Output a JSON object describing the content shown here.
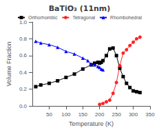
{
  "chart_data": {
    "type": "line",
    "title": "BaTiO₃ (11nm)",
    "xlabel": "Temperature (K)",
    "ylabel": "Volume Fraction",
    "xlim": [
      0,
      350
    ],
    "ylim": [
      0.0,
      1.0
    ],
    "xticks": [
      50,
      100,
      150,
      200,
      250,
      300,
      350
    ],
    "yticks": [
      {
        "value": 0,
        "label": "0.0"
      },
      0.2,
      0.4,
      0.6,
      0.8,
      {
        "value": 1,
        "label": "1.0"
      }
    ],
    "grid": false,
    "legend": "top",
    "series": [
      {
        "name": "Orthorhombic",
        "color": "#000000",
        "marker": "square",
        "x": [
          10,
          25,
          50,
          75,
          100,
          125,
          150,
          175,
          185,
          195,
          200,
          205,
          210,
          220,
          230,
          240,
          250,
          260,
          270,
          280,
          290,
          300,
          310,
          320
        ],
        "values": [
          0.23,
          0.25,
          0.27,
          0.3,
          0.34,
          0.38,
          0.44,
          0.49,
          0.51,
          0.52,
          0.51,
          0.52,
          0.54,
          0.6,
          0.68,
          0.69,
          0.6,
          0.45,
          0.35,
          0.27,
          0.22,
          0.18,
          0.17,
          0.16
        ]
      },
      {
        "name": "Tetragonal",
        "color": "#ff2222",
        "marker": "circle",
        "x": [
          200,
          210,
          220,
          230,
          240,
          250,
          260,
          270,
          280,
          290,
          300,
          310,
          320
        ],
        "values": [
          0.02,
          0.03,
          0.05,
          0.07,
          0.15,
          0.28,
          0.48,
          0.63,
          0.67,
          0.72,
          0.76,
          0.8,
          0.82
        ]
      },
      {
        "name": "Rhombohedral",
        "color": "#0000ff",
        "marker": "triangle",
        "x": [
          10,
          25,
          50,
          75,
          100,
          125,
          150,
          165,
          175,
          185,
          195,
          200,
          205,
          210
        ],
        "values": [
          0.77,
          0.75,
          0.73,
          0.7,
          0.65,
          0.62,
          0.57,
          0.54,
          0.5,
          0.49,
          0.47,
          0.46,
          0.44,
          0.43
        ]
      }
    ]
  }
}
